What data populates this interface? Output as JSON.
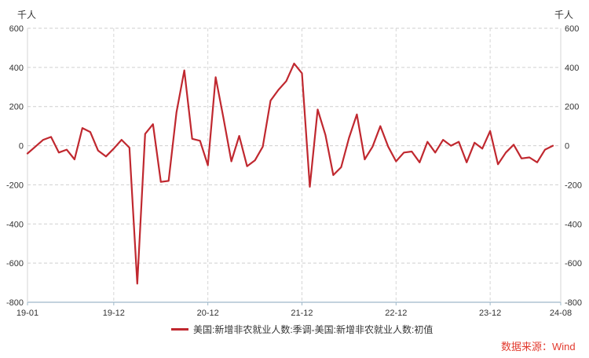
{
  "chart_data": {
    "type": "line",
    "unit_left": "千人",
    "unit_right": "千人",
    "ylim": [
      -800,
      600
    ],
    "y_ticks": [
      -800,
      -600,
      -400,
      -200,
      0,
      200,
      400,
      600
    ],
    "x_range": [
      0,
      68
    ],
    "x_ticks": [
      {
        "pos": 0,
        "label": "19-01"
      },
      {
        "pos": 11,
        "label": "19-12"
      },
      {
        "pos": 23,
        "label": "20-12"
      },
      {
        "pos": 35,
        "label": "21-12"
      },
      {
        "pos": 47,
        "label": "22-12"
      },
      {
        "pos": 59,
        "label": "23-12"
      },
      {
        "pos": 68,
        "label": "24-08"
      }
    ],
    "grid": true,
    "legend_position": "bottom",
    "series": [
      {
        "name": "美国:新增非农就业人数:季调-美国:新增非农就业人数:初值",
        "color": "#c0282f",
        "values": [
          -40,
          -5,
          30,
          45,
          -35,
          -20,
          -70,
          90,
          70,
          -25,
          -55,
          -15,
          30,
          -10,
          -705,
          60,
          110,
          -185,
          -180,
          170,
          385,
          35,
          25,
          -100,
          350,
          140,
          -80,
          50,
          -105,
          -75,
          -5,
          230,
          285,
          330,
          420,
          370,
          -210,
          185,
          55,
          -150,
          -110,
          40,
          160,
          -70,
          -5,
          100,
          -5,
          -80,
          -35,
          -30,
          -85,
          20,
          -35,
          30,
          0,
          20,
          -85,
          15,
          -15,
          75,
          -95,
          -35,
          5,
          -65,
          -60,
          -85,
          -20,
          0
        ]
      }
    ]
  },
  "legend_label": "美国:新增非农就业人数:季调-美国:新增非农就业人数:初值",
  "source_label": "数据来源：Wind"
}
